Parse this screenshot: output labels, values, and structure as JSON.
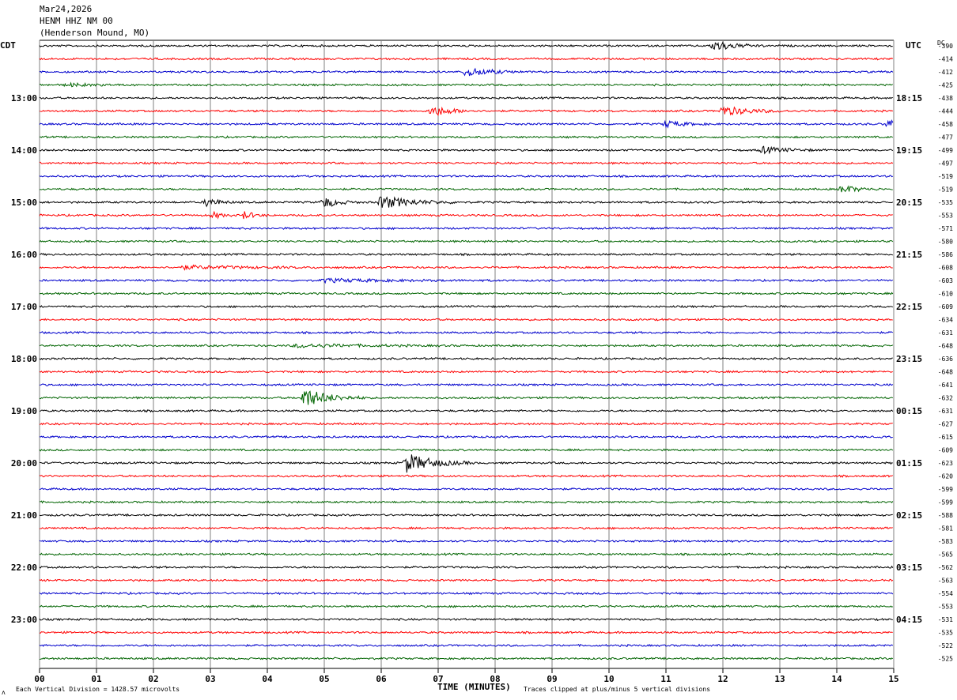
{
  "header": {
    "date": "Mar24,2026",
    "station": "HENM HHZ NM 00",
    "location": "(Henderson Mound, MO)"
  },
  "labels": {
    "left_tz": "CDT",
    "right_tz": "UTC",
    "dc_label": "DC",
    "xlabel": "TIME (MINUTES)",
    "scale_note": "Each Vertical Division = 1428.57 microvolts",
    "clip_note": "Traces clipped at plus/minus 5 vertical divisions",
    "corner_mark": "ʌ"
  },
  "colors": {
    "trace_cycle": [
      "#000000",
      "#ff0000",
      "#0000cc",
      "#006400"
    ],
    "grid": "#808080"
  },
  "chart_data": {
    "type": "helicorder",
    "x_range_minutes": [
      0,
      15
    ],
    "x_ticks": [
      "00",
      "01",
      "02",
      "03",
      "04",
      "05",
      "06",
      "07",
      "08",
      "09",
      "10",
      "11",
      "12",
      "13",
      "14",
      "15"
    ],
    "line_count": 48,
    "left_hour_labels": [
      {
        "line": 4,
        "text": "13:00"
      },
      {
        "line": 8,
        "text": "14:00"
      },
      {
        "line": 12,
        "text": "15:00"
      },
      {
        "line": 16,
        "text": "16:00"
      },
      {
        "line": 20,
        "text": "17:00"
      },
      {
        "line": 24,
        "text": "18:00"
      },
      {
        "line": 28,
        "text": "19:00"
      },
      {
        "line": 32,
        "text": "20:00"
      },
      {
        "line": 36,
        "text": "21:00"
      },
      {
        "line": 40,
        "text": "22:00"
      },
      {
        "line": 44,
        "text": "23:00"
      }
    ],
    "right_hour_labels": [
      {
        "line": 4,
        "text": "18:15"
      },
      {
        "line": 8,
        "text": "19:15"
      },
      {
        "line": 12,
        "text": "20:15"
      },
      {
        "line": 16,
        "text": "21:15"
      },
      {
        "line": 20,
        "text": "22:15"
      },
      {
        "line": 24,
        "text": "23:15"
      },
      {
        "line": 28,
        "text": "00:15"
      },
      {
        "line": 32,
        "text": "01:15"
      },
      {
        "line": 36,
        "text": "02:15"
      },
      {
        "line": 40,
        "text": "03:15"
      },
      {
        "line": 44,
        "text": "04:15"
      }
    ],
    "dc_offsets": [
      "-390",
      "-414",
      "-412",
      "-425",
      "-438",
      "-444",
      "-458",
      "-477",
      "-499",
      "-497",
      "-519",
      "-519",
      "-535",
      "-553",
      "-571",
      "-580",
      "-586",
      "-608",
      "-603",
      "-610",
      "-609",
      "-634",
      "-631",
      "-648",
      "-636",
      "-648",
      "-641",
      "-632",
      "-631",
      "-627",
      "-615",
      "-609",
      "-623",
      "-620",
      "-599",
      "-599",
      "-588",
      "-581",
      "-583",
      "-565",
      "-562",
      "-563",
      "-554",
      "-553",
      "-531",
      "-535",
      "-522",
      "-525"
    ],
    "events": [
      {
        "line": 0,
        "minute": 11.85,
        "amp": 7,
        "dur": 0.9
      },
      {
        "line": 2,
        "minute": 7.5,
        "amp": 6,
        "dur": 1.0
      },
      {
        "line": 3,
        "minute": 0.5,
        "amp": 2,
        "dur": 1.0
      },
      {
        "line": 5,
        "minute": 6.9,
        "amp": 7,
        "dur": 0.8
      },
      {
        "line": 5,
        "minute": 12.0,
        "amp": 6,
        "dur": 1.2
      },
      {
        "line": 6,
        "minute": 11.0,
        "amp": 4,
        "dur": 0.8
      },
      {
        "line": 6,
        "minute": 14.9,
        "amp": 5,
        "dur": 0.6
      },
      {
        "line": 8,
        "minute": 12.7,
        "amp": 4,
        "dur": 1.0
      },
      {
        "line": 11,
        "minute": 14.1,
        "amp": 5,
        "dur": 0.7
      },
      {
        "line": 12,
        "minute": 2.95,
        "amp": 6,
        "dur": 0.5
      },
      {
        "line": 12,
        "minute": 5.0,
        "amp": 7,
        "dur": 0.6
      },
      {
        "line": 12,
        "minute": 6.0,
        "amp": 8,
        "dur": 1.4
      },
      {
        "line": 13,
        "minute": 3.05,
        "amp": 4,
        "dur": 0.4
      },
      {
        "line": 13,
        "minute": 3.6,
        "amp": 5,
        "dur": 0.4
      },
      {
        "line": 17,
        "minute": 2.5,
        "amp": 2,
        "dur": 3.0
      },
      {
        "line": 18,
        "minute": 5.0,
        "amp": 2,
        "dur": 3.0
      },
      {
        "line": 23,
        "minute": 4.5,
        "amp": 2,
        "dur": 3.0
      },
      {
        "line": 27,
        "minute": 4.65,
        "amp": 12,
        "dur": 1.1
      },
      {
        "line": 32,
        "minute": 6.45,
        "amp": 12,
        "dur": 1.2
      }
    ]
  }
}
